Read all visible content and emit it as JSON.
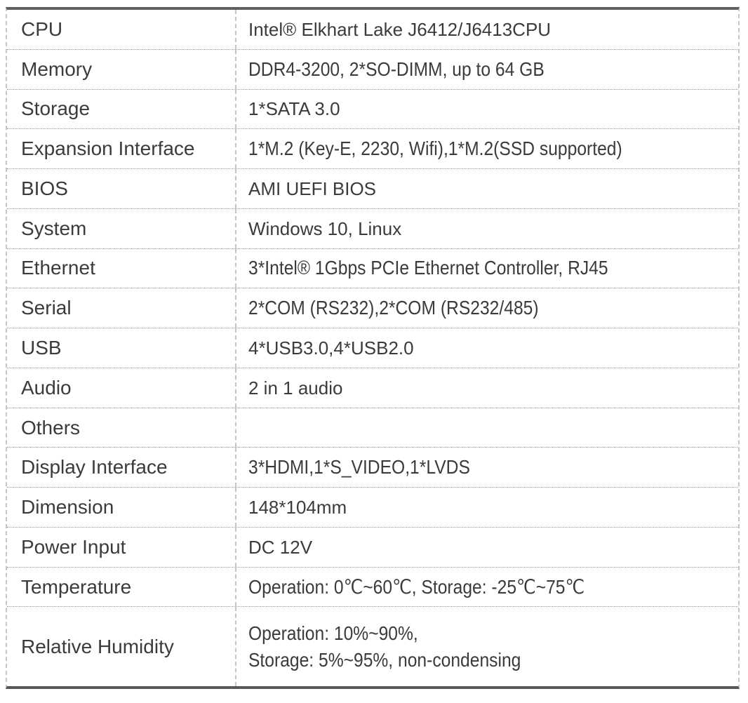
{
  "colors": {
    "text": "#3b3b3b",
    "outer_border_solid": "#5e5e5e",
    "outer_border_dashed": "#c5c5c5",
    "row_divider_dotted": "#9c9c9c",
    "column_divider_dashed": "#c5c5c5",
    "background": "#ffffff"
  },
  "spec_table": {
    "rows": [
      {
        "label": "CPU",
        "value": "Intel® Elkhart Lake J6412/J6413CPU",
        "condensed": false
      },
      {
        "label": "Memory",
        "value": "DDR4-3200, 2*SO-DIMM, up to 64 GB",
        "condensed": true
      },
      {
        "label": "Storage",
        "value": "1*SATA 3.0",
        "condensed": false
      },
      {
        "label": "Expansion Interface",
        "value": "1*M.2 (Key-E, 2230, Wifi),1*M.2(SSD supported)",
        "condensed": true
      },
      {
        "label": "BIOS",
        "value": "AMI UEFI BIOS",
        "condensed": false
      },
      {
        "label": "System",
        "value": "Windows 10, Linux",
        "condensed": false
      },
      {
        "label": "Ethernet",
        "value": "3*Intel® 1Gbps PCIe Ethernet Controller, RJ45",
        "condensed": true
      },
      {
        "label": "Serial",
        "value": "2*COM (RS232),2*COM (RS232/485)",
        "condensed": true
      },
      {
        "label": "USB",
        "value": "4*USB3.0,4*USB2.0",
        "condensed": false
      },
      {
        "label": "Audio",
        "value": "2 in 1 audio",
        "condensed": false
      },
      {
        "label": "Others",
        "value": "",
        "condensed": false
      },
      {
        "label": "Display Interface",
        "value": "3*HDMI,1*S_VIDEO,1*LVDS",
        "condensed": true
      },
      {
        "label": "Dimension",
        "value": "148*104mm",
        "condensed": false
      },
      {
        "label": "Power Input",
        "value": "DC 12V",
        "condensed": false
      },
      {
        "label": "Temperature",
        "value": "Operation: 0℃~60℃, Storage: -25℃~75℃",
        "condensed": true
      },
      {
        "label": "Relative Humidity",
        "value": "Operation: 10%~90%,",
        "value_line2": "Storage: 5%~95%, non-condensing",
        "condensed": true,
        "tall": true
      }
    ]
  }
}
